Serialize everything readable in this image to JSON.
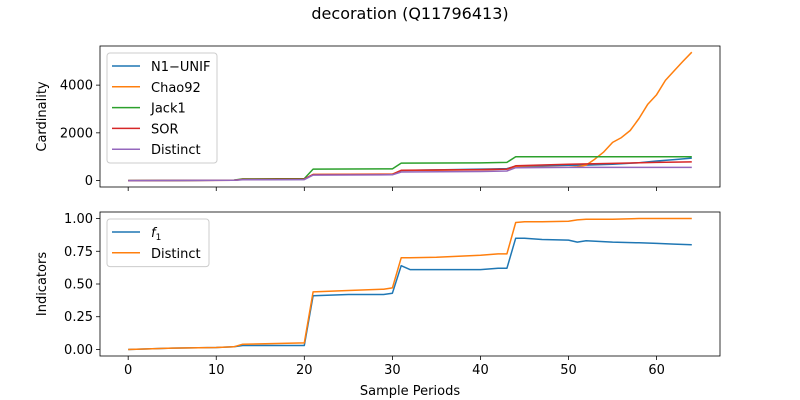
{
  "figure": {
    "title": "decoration (Q11796413)",
    "xlabel": "Sample Periods"
  },
  "chart_data": [
    {
      "type": "line",
      "panel": "top",
      "ylabel": "Cardinality",
      "xlim": [
        -3.2,
        67.2
      ],
      "ylim": [
        -270,
        5640
      ],
      "xticks": [
        0,
        10,
        20,
        30,
        40,
        50,
        60
      ],
      "show_xtick_labels": false,
      "yticks": [
        0,
        2000,
        4000
      ],
      "legend_position": "upper left",
      "grid": false,
      "series": [
        {
          "name": "N1−UNIF",
          "color": "#1f77b4",
          "x": [
            0,
            5,
            10,
            12,
            13,
            20,
            21,
            30,
            31,
            40,
            43,
            44,
            50,
            52,
            55,
            58,
            60,
            62,
            64
          ],
          "y": [
            0,
            0,
            10,
            10,
            40,
            50,
            250,
            260,
            420,
            480,
            500,
            600,
            640,
            650,
            680,
            750,
            820,
            880,
            940
          ]
        },
        {
          "name": "Chao92",
          "color": "#ff7f0e",
          "x": [
            0,
            12,
            13,
            20,
            21,
            30,
            31,
            40,
            43,
            44,
            50,
            51,
            52,
            53,
            54,
            55,
            56,
            57,
            58,
            59,
            60,
            61,
            62,
            63,
            64
          ],
          "y": [
            0,
            10,
            50,
            60,
            260,
            270,
            420,
            450,
            480,
            560,
            560,
            580,
            650,
            900,
            1200,
            1600,
            1800,
            2100,
            2600,
            3200,
            3600,
            4200,
            4600,
            5000,
            5380
          ]
        },
        {
          "name": "Jack1",
          "color": "#2ca02c",
          "x": [
            0,
            12,
            13,
            20,
            21,
            30,
            31,
            40,
            43,
            44,
            50,
            55,
            60,
            64
          ],
          "y": [
            0,
            20,
            70,
            80,
            480,
            490,
            730,
            740,
            760,
            1000,
            1000,
            1000,
            1000,
            1000
          ]
        },
        {
          "name": "SOR",
          "color": "#d62728",
          "x": [
            0,
            12,
            13,
            20,
            21,
            30,
            31,
            40,
            43,
            44,
            50,
            55,
            60,
            64
          ],
          "y": [
            0,
            10,
            50,
            60,
            250,
            260,
            430,
            460,
            480,
            620,
            680,
            720,
            760,
            780
          ]
        },
        {
          "name": "Distinct",
          "color": "#9467bd",
          "x": [
            0,
            12,
            13,
            20,
            21,
            30,
            31,
            40,
            43,
            44,
            50,
            55,
            60,
            64
          ],
          "y": [
            0,
            10,
            30,
            40,
            230,
            240,
            360,
            380,
            400,
            540,
            550,
            550,
            550,
            550
          ]
        }
      ]
    },
    {
      "type": "line",
      "panel": "bottom",
      "ylabel": "Indicators",
      "xlim": [
        -3.2,
        67.2
      ],
      "ylim": [
        -0.05,
        1.05
      ],
      "xticks": [
        0,
        10,
        20,
        30,
        40,
        50,
        60
      ],
      "show_xtick_labels": true,
      "yticks": [
        0.0,
        0.25,
        0.5,
        0.75,
        1.0
      ],
      "ytick_labels": [
        "0.00",
        "0.25",
        "0.50",
        "0.75",
        "1.00"
      ],
      "legend_position": "upper left",
      "grid": false,
      "series": [
        {
          "name": "f1",
          "label_math": {
            "base": "f",
            "sub": "1"
          },
          "color": "#1f77b4",
          "x": [
            0,
            5,
            10,
            12,
            13,
            20,
            21,
            25,
            29,
            30,
            31,
            32,
            35,
            40,
            42,
            43,
            44,
            45,
            47,
            50,
            51,
            52,
            55,
            58,
            60,
            62,
            64
          ],
          "y": [
            0.0,
            0.01,
            0.015,
            0.02,
            0.03,
            0.03,
            0.41,
            0.42,
            0.42,
            0.43,
            0.64,
            0.61,
            0.61,
            0.61,
            0.62,
            0.62,
            0.85,
            0.85,
            0.84,
            0.835,
            0.82,
            0.83,
            0.82,
            0.815,
            0.81,
            0.805,
            0.8
          ]
        },
        {
          "name": "Distinct",
          "color": "#ff7f0e",
          "x": [
            0,
            5,
            10,
            12,
            13,
            20,
            21,
            25,
            29,
            30,
            31,
            32,
            35,
            40,
            42,
            43,
            44,
            45,
            47,
            50,
            51,
            52,
            55,
            58,
            60,
            62,
            64
          ],
          "y": [
            0.0,
            0.01,
            0.015,
            0.02,
            0.04,
            0.05,
            0.44,
            0.45,
            0.46,
            0.47,
            0.7,
            0.7,
            0.705,
            0.72,
            0.73,
            0.73,
            0.97,
            0.975,
            0.975,
            0.98,
            0.99,
            0.995,
            0.995,
            1.0,
            1.0,
            1.0,
            1.0
          ]
        }
      ]
    }
  ]
}
